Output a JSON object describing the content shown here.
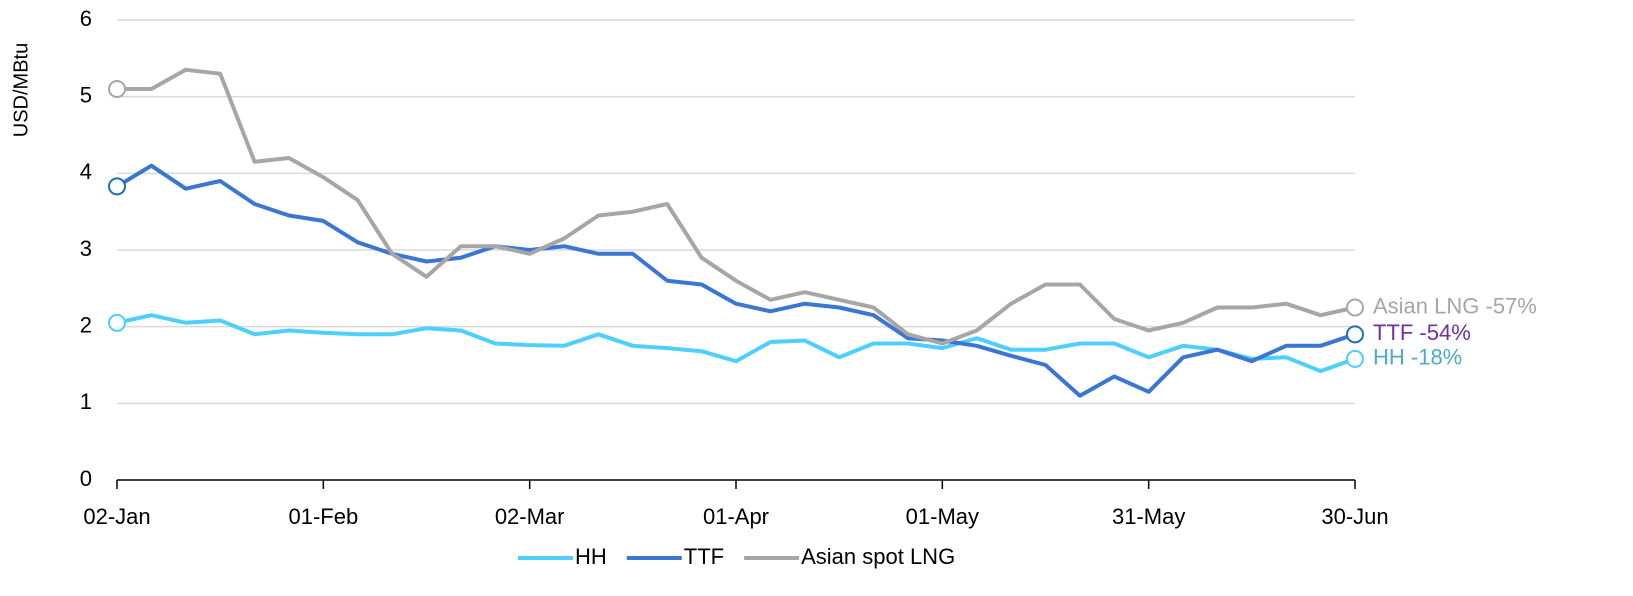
{
  "chart_data": {
    "type": "line",
    "ylabel": "USD/MBtu",
    "x": [
      "02-Jan",
      "07-Jan",
      "12-Jan",
      "17-Jan",
      "22-Jan",
      "27-Jan",
      "01-Feb",
      "06-Feb",
      "11-Feb",
      "16-Feb",
      "21-Feb",
      "26-Feb",
      "02-Mar",
      "07-Mar",
      "12-Mar",
      "17-Mar",
      "22-Mar",
      "27-Mar",
      "01-Apr",
      "06-Apr",
      "11-Apr",
      "16-Apr",
      "21-Apr",
      "26-Apr",
      "01-May",
      "06-May",
      "11-May",
      "16-May",
      "21-May",
      "26-May",
      "31-May",
      "05-Jun",
      "10-Jun",
      "15-Jun",
      "20-Jun",
      "25-Jun",
      "30-Jun"
    ],
    "xticks": [
      "02-Jan",
      "01-Feb",
      "02-Mar",
      "01-Apr",
      "01-May",
      "31-May",
      "30-Jun"
    ],
    "ylim": [
      0,
      6
    ],
    "yticks": [
      0,
      1,
      2,
      3,
      4,
      5,
      6
    ],
    "grid": true,
    "series": [
      {
        "name": "HH",
        "color": "#4dcfff",
        "end_label": "HH -18%",
        "end_label_color": "#4bacc6",
        "values": [
          2.05,
          2.15,
          2.05,
          2.08,
          1.9,
          1.95,
          1.92,
          1.9,
          1.9,
          1.98,
          1.95,
          1.78,
          1.76,
          1.75,
          1.9,
          1.75,
          1.72,
          1.68,
          1.55,
          1.8,
          1.82,
          1.6,
          1.78,
          1.78,
          1.72,
          1.85,
          1.7,
          1.7,
          1.78,
          1.78,
          1.6,
          1.75,
          1.7,
          1.58,
          1.6,
          1.42,
          1.58
        ]
      },
      {
        "name": "TTF",
        "color": "#3a76d2",
        "end_label": "TTF -54%",
        "end_label_color": "#7030a0",
        "values": [
          3.83,
          4.1,
          3.8,
          3.9,
          3.6,
          3.45,
          3.38,
          3.1,
          2.95,
          2.85,
          2.9,
          3.05,
          3.0,
          3.05,
          2.95,
          2.95,
          2.6,
          2.55,
          2.3,
          2.2,
          2.3,
          2.25,
          2.15,
          1.85,
          1.82,
          1.75,
          1.62,
          1.5,
          1.1,
          1.35,
          1.15,
          1.6,
          1.7,
          1.55,
          1.75,
          1.75,
          1.9
        ]
      },
      {
        "name": "Asian spot LNG",
        "color": "#a6a6a6",
        "end_label": "Asian LNG -57%",
        "end_label_color": "#a6a6a6",
        "values": [
          5.1,
          5.1,
          5.35,
          5.3,
          4.15,
          4.2,
          3.95,
          3.65,
          2.95,
          2.65,
          3.05,
          3.05,
          2.95,
          3.15,
          3.45,
          3.5,
          3.6,
          2.9,
          2.6,
          2.35,
          2.45,
          2.35,
          2.25,
          1.9,
          1.78,
          1.95,
          2.3,
          2.55,
          2.55,
          2.1,
          1.95,
          2.05,
          2.25,
          2.25,
          2.3,
          2.15,
          2.25
        ]
      }
    ]
  }
}
